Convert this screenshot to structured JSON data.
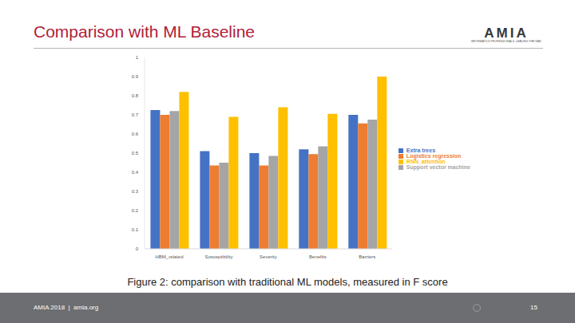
{
  "header": {
    "title": "Comparison with ML Baseline",
    "logo": "AMIA",
    "tagline": "INFORMATICS PROFESSIONALS. LEADING THE WAY."
  },
  "caption": "Figure 2: comparison with traditional ML models, measured in F score",
  "footer": {
    "text": "AMIA 2018  |  amia.org",
    "page": "15"
  },
  "chart_data": {
    "type": "bar",
    "categories": [
      "HBM_related",
      "Susceptibility",
      "Severity",
      "Benefits",
      "Barriers"
    ],
    "series": [
      {
        "name": "Extra trees",
        "color": "#4472c4",
        "values": [
          0.725,
          0.51,
          0.5,
          0.52,
          0.7
        ]
      },
      {
        "name": "Logistics regression",
        "color": "#ed7d31",
        "values": [
          0.7,
          0.435,
          0.435,
          0.495,
          0.655
        ]
      },
      {
        "name": "Support vector machine",
        "color": "#a5a5a5",
        "values": [
          0.72,
          0.45,
          0.485,
          0.535,
          0.675
        ]
      },
      {
        "name": "RNN_attention",
        "color": "#ffc000",
        "values": [
          0.82,
          0.69,
          0.74,
          0.705,
          0.9
        ]
      }
    ],
    "ylim": [
      0,
      1
    ],
    "yticks": [
      0,
      0.1,
      0.2,
      0.3,
      0.4,
      0.5,
      0.6,
      0.7,
      0.8,
      0.9,
      1
    ],
    "grid": false,
    "legend": "right"
  }
}
